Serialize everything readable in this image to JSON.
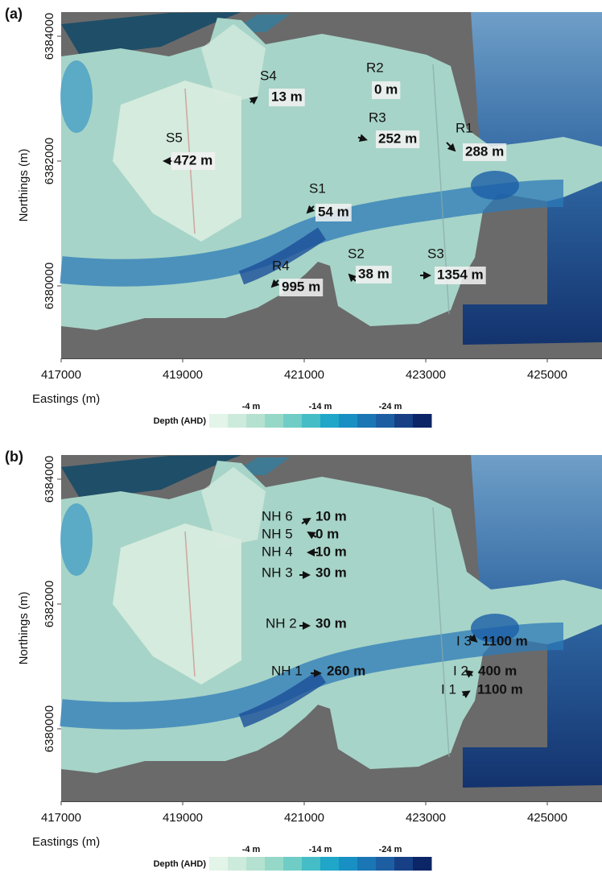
{
  "panels": [
    {
      "label": "(a)",
      "xlabel": "Eastings (m)",
      "ylabel": "Northings (m)",
      "xticks": [
        417000,
        419000,
        421000,
        423000,
        425000
      ],
      "yticks": [
        6380000,
        6382000,
        6384000
      ],
      "legend": {
        "title": "Depth (AHD)",
        "labels": [
          "-4 m",
          "-14 m",
          "-24 m"
        ]
      },
      "markers": [
        {
          "site": "S4",
          "distance": "13 m"
        },
        {
          "site": "R2",
          "distance": "0 m"
        },
        {
          "site": "R3",
          "distance": "252 m"
        },
        {
          "site": "R1",
          "distance": "288 m"
        },
        {
          "site": "S5",
          "distance": "472 m"
        },
        {
          "site": "S1",
          "distance": "54 m"
        },
        {
          "site": "S2",
          "distance": "38 m"
        },
        {
          "site": "S3",
          "distance": "1354 m"
        },
        {
          "site": "R4",
          "distance": "995 m"
        }
      ]
    },
    {
      "label": "(b)",
      "xlabel": "Eastings (m)",
      "ylabel": "Northings (m)",
      "xticks": [
        417000,
        419000,
        421000,
        423000,
        425000
      ],
      "yticks": [
        6380000,
        6382000,
        6384000
      ],
      "legend": {
        "title": "Depth (AHD)",
        "labels": [
          "-4 m",
          "-14 m",
          "-24 m"
        ]
      },
      "markers": [
        {
          "site": "NH 6",
          "distance": "10 m"
        },
        {
          "site": "NH 5",
          "distance": "0 m"
        },
        {
          "site": "NH 4",
          "distance": "10 m"
        },
        {
          "site": "NH 3",
          "distance": "30 m"
        },
        {
          "site": "NH 2",
          "distance": "30 m"
        },
        {
          "site": "NH 1",
          "distance": "260 m"
        },
        {
          "site": "I 3",
          "distance": "1100 m"
        },
        {
          "site": "I 2",
          "distance": "400 m"
        },
        {
          "site": "I 1",
          "distance": "1100 m"
        }
      ]
    }
  ]
}
